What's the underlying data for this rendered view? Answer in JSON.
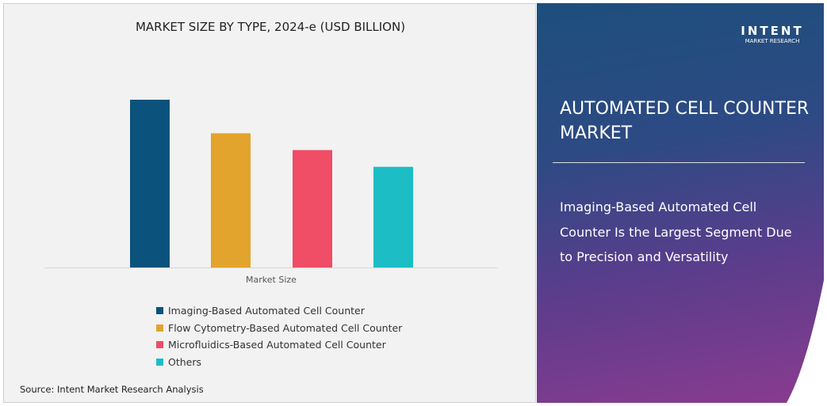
{
  "chart_data": {
    "type": "bar",
    "title": "MARKET SIZE BY TYPE, 2024-e (USD BILLION)",
    "xlabel": "Market Size",
    "ylabel": "",
    "categories": [
      "Market Size"
    ],
    "series": [
      {
        "name": "Imaging-Based Automated Cell Counter",
        "values": [
          100
        ],
        "color": "#0b527d"
      },
      {
        "name": "Flow Cytometry-Based Automated Cell Counter",
        "values": [
          80
        ],
        "color": "#e2a42c"
      },
      {
        "name": "Microfluidics-Based Automated Cell Counter",
        "values": [
          70
        ],
        "color": "#f04d66"
      },
      {
        "name": "Others",
        "values": [
          60
        ],
        "color": "#1dbdc6"
      }
    ],
    "ylim": [
      0,
      100
    ],
    "grid": false,
    "legend": "bottom"
  },
  "source": "Source: Intent Market Research Analysis",
  "logo": {
    "brand": "INTENT",
    "sub": "MARKET RESEARCH"
  },
  "panel": {
    "heading": "AUTOMATED CELL COUNTER MARKET",
    "description": "Imaging-Based Automated Cell Counter Is the Largest Segment Due to Precision and Versatility"
  }
}
